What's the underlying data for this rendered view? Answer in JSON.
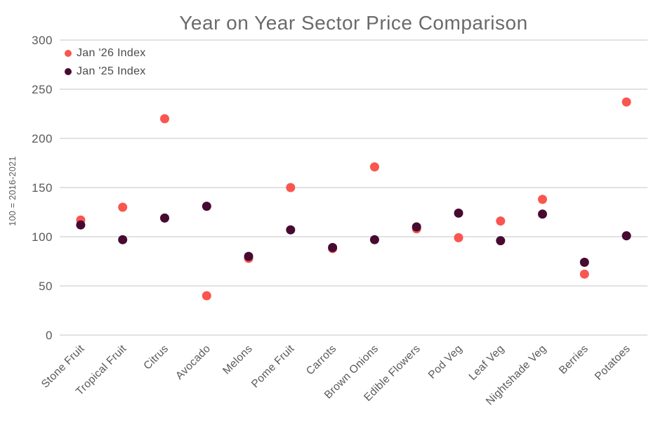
{
  "chart_data": {
    "type": "scatter",
    "title": "Year on Year Sector Price Comparison",
    "ylabel": "100 = 2016-2021",
    "ylim": [
      0,
      300
    ],
    "ytick_step": 50,
    "grid": true,
    "legend_position": "top-left",
    "categories": [
      "Stone Fruit",
      "Tropical Fruit",
      "Citrus",
      "Avocado",
      "Melons",
      "Pome Fruit",
      "Carrots",
      "Brown Onions",
      "Edible Flowers",
      "Pod Veg",
      "Leaf Veg",
      "Nightshade Veg",
      "Berries",
      "Potatoes"
    ],
    "series": [
      {
        "name": "Jan '26 Index",
        "color": "#F8564F",
        "values": [
          117,
          130,
          220,
          40,
          78,
          150,
          88,
          171,
          108,
          99,
          116,
          138,
          62,
          237
        ]
      },
      {
        "name": "Jan '25 Index",
        "color": "#470A31",
        "values": [
          112,
          97,
          119,
          131,
          80,
          107,
          89,
          97,
          110,
          124,
          96,
          123,
          74,
          101
        ]
      }
    ],
    "colors": {
      "gridline": "#D8D8D8",
      "title_text": "#6A6A6A",
      "axis_text": "#595959",
      "legend_text": "#4A4A4A"
    }
  }
}
